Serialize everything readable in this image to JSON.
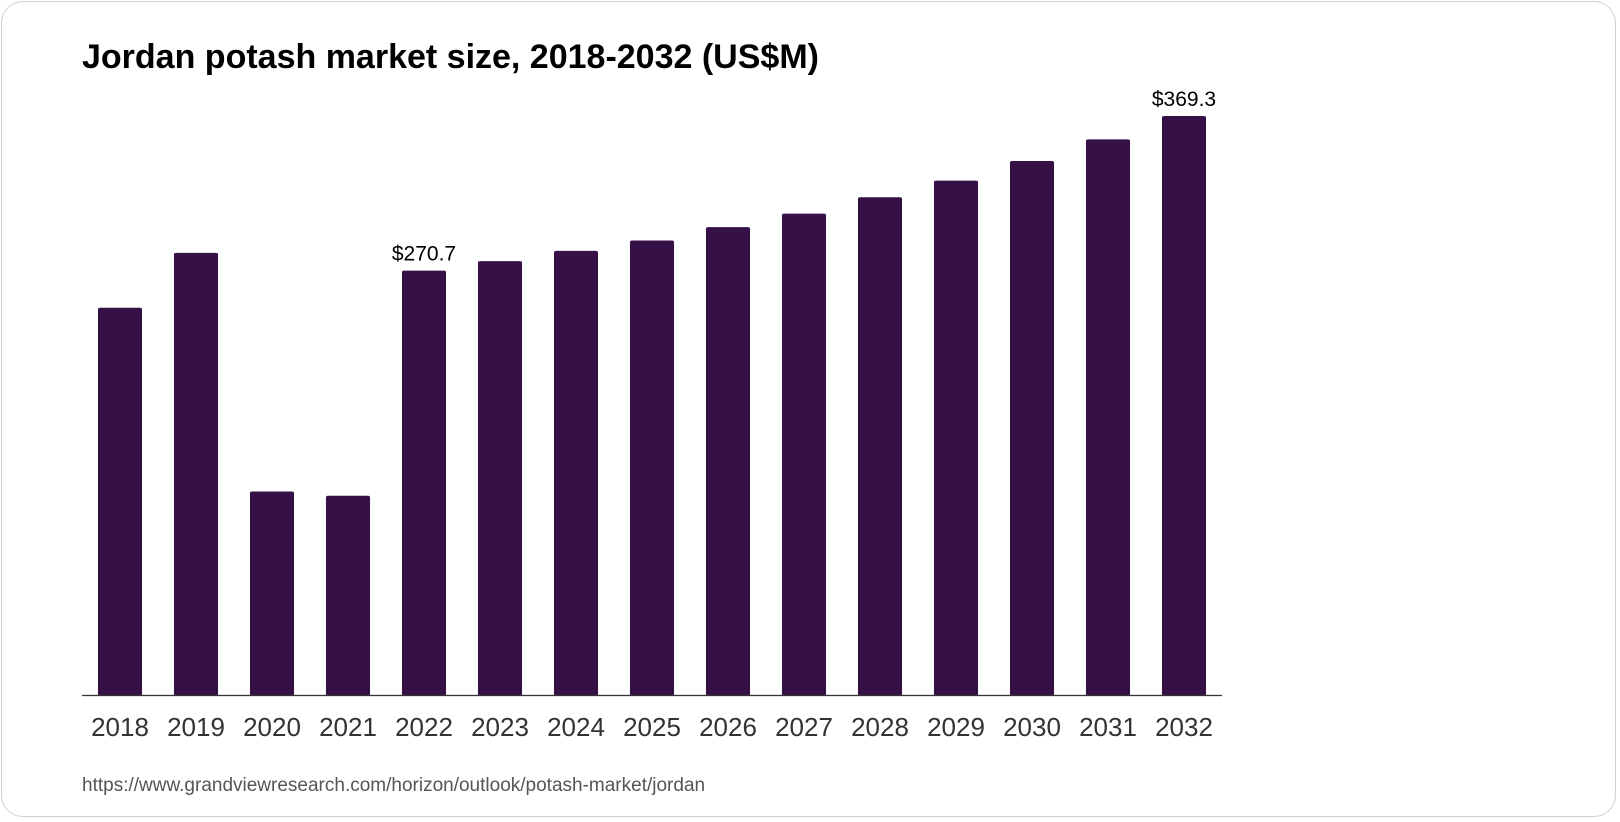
{
  "chart_data": {
    "type": "bar",
    "title": "Jordan potash market size, 2018-2032 (US$M)",
    "xlabel": "",
    "ylabel": "",
    "categories": [
      "2018",
      "2019",
      "2020",
      "2021",
      "2022",
      "2023",
      "2024",
      "2025",
      "2026",
      "2027",
      "2028",
      "2029",
      "2030",
      "2031",
      "2032"
    ],
    "values": [
      247.0,
      282.0,
      129.8,
      127.1,
      270.7,
      276.7,
      283.3,
      289.9,
      298.4,
      307.0,
      317.5,
      328.1,
      340.6,
      354.4,
      369.3
    ],
    "data_labels": [
      {
        "index": 4,
        "text": "$270.7"
      },
      {
        "index": 14,
        "text": "$369.3"
      }
    ],
    "ylim": [
      0,
      369.3
    ],
    "grid": false,
    "legend": "none",
    "bar_color": "#361148"
  },
  "source": "https://www.grandviewresearch.com/horizon/outlook/potash-market/jordan"
}
